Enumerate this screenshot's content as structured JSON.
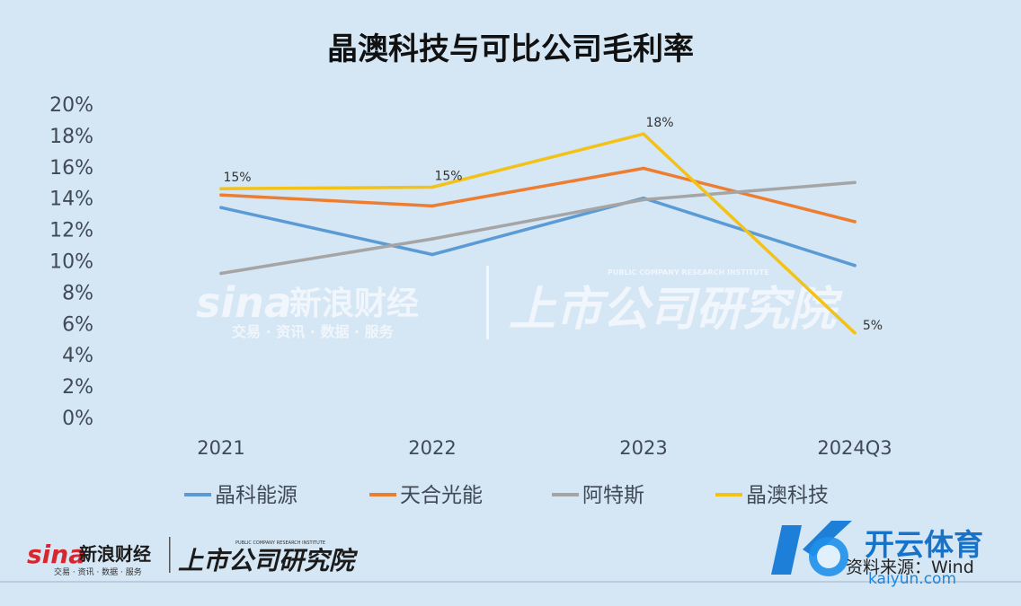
{
  "chart_data": {
    "type": "line",
    "title": "晶澳科技与可比公司毛利率",
    "categories": [
      "2021",
      "2022",
      "2023",
      "2024Q3"
    ],
    "ylim": [
      0,
      20
    ],
    "y_ticks": [
      "0%",
      "2%",
      "4%",
      "6%",
      "8%",
      "10%",
      "12%",
      "14%",
      "16%",
      "18%",
      "20%"
    ],
    "grid": false,
    "legend_position": "bottom",
    "series": [
      {
        "name": "晶科能源",
        "color": "#5b9bd5",
        "values": [
          13.4,
          10.4,
          14.0,
          9.7
        ]
      },
      {
        "name": "天合光能",
        "color": "#ed7d31",
        "values": [
          14.2,
          13.5,
          15.9,
          12.5
        ]
      },
      {
        "name": "阿特斯",
        "color": "#a5a5a5",
        "values": [
          9.2,
          11.4,
          13.9,
          15.0
        ]
      },
      {
        "name": "晶澳科技",
        "color": "#f2c219",
        "values": [
          14.6,
          14.7,
          18.1,
          5.4
        ],
        "data_labels": [
          "15%",
          "15%",
          "18%",
          "5%"
        ]
      }
    ]
  },
  "watermark": {
    "brand": "sina",
    "name": "新浪财经",
    "tagline": "交易 · 资讯 · 数据 · 服务",
    "institute": "上市公司研究院",
    "institute_en": "PUBLIC COMPANY RESEARCH INSTITUTE"
  },
  "footer": {
    "source": "资料来源：Wind",
    "kaiyun_name": "开云体育",
    "kaiyun_domain": "kaiyun.com"
  }
}
